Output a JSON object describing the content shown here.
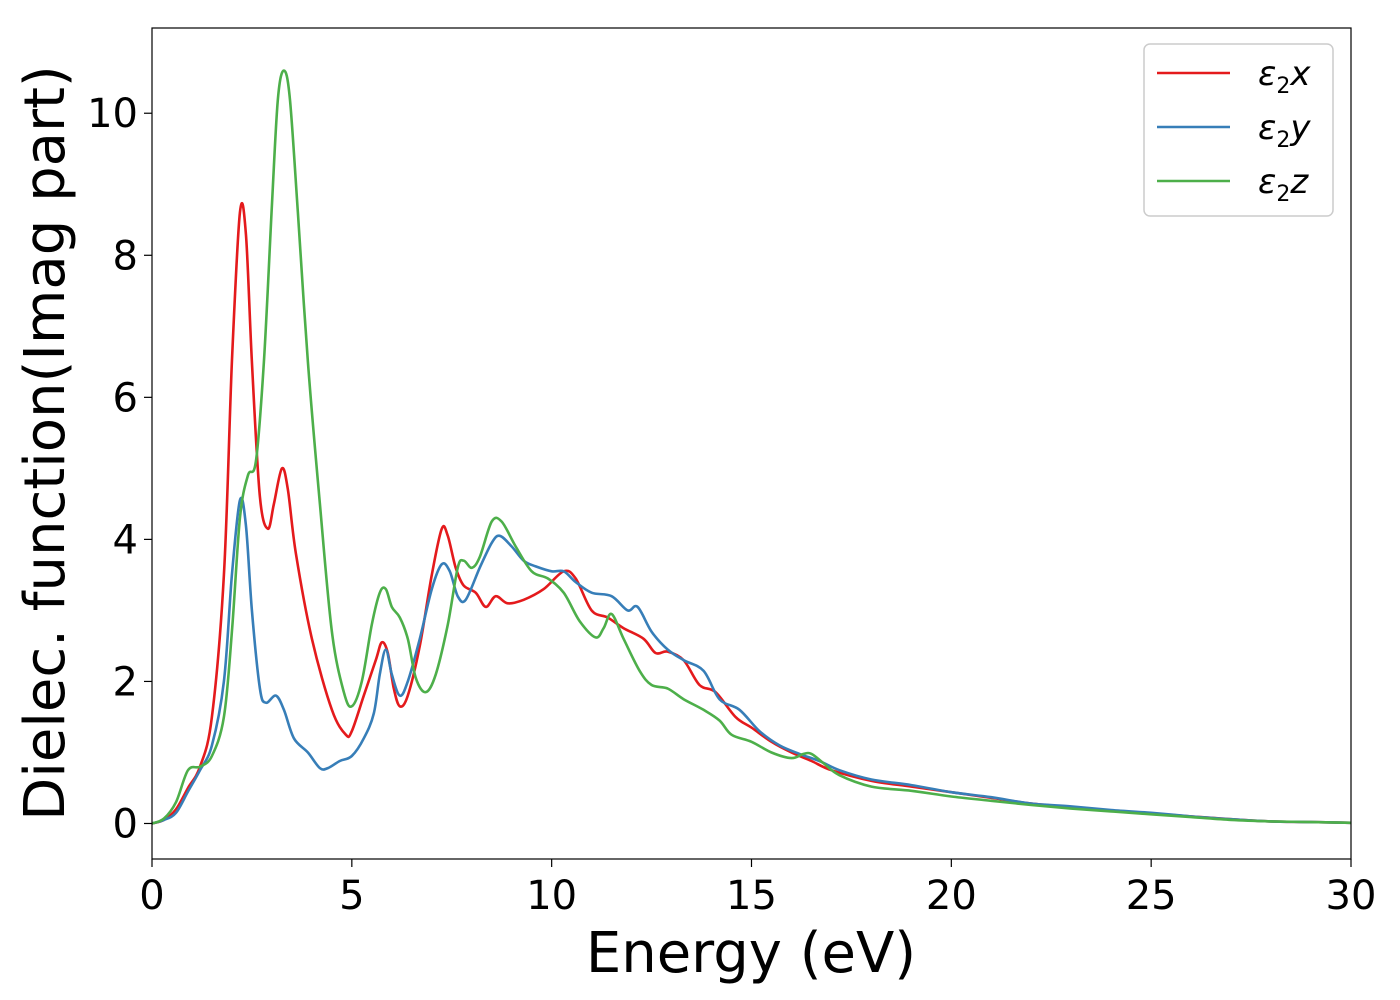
{
  "chart_data": {
    "type": "line",
    "xlabel": "Energy (eV)",
    "ylabel": "Dielec. function(Imag part)",
    "xlim": [
      0,
      30
    ],
    "ylim": [
      -0.5,
      11.2
    ],
    "xticks": [
      0,
      5,
      10,
      15,
      20,
      25,
      30
    ],
    "yticks": [
      0,
      2,
      4,
      6,
      8,
      10
    ],
    "grid": false,
    "legend_position": "top-right",
    "series": [
      {
        "name": "ε2x",
        "legend": {
          "base": "ε",
          "sub": "2",
          "var": "x"
        },
        "color": "#e41a1c",
        "points": [
          [
            0,
            0
          ],
          [
            0.3,
            0.05
          ],
          [
            0.6,
            0.2
          ],
          [
            0.9,
            0.5
          ],
          [
            1.2,
            0.8
          ],
          [
            1.5,
            1.5
          ],
          [
            1.8,
            3.5
          ],
          [
            2.0,
            6.5
          ],
          [
            2.2,
            8.6
          ],
          [
            2.35,
            8.3
          ],
          [
            2.5,
            6.5
          ],
          [
            2.7,
            4.6
          ],
          [
            2.9,
            4.15
          ],
          [
            3.05,
            4.5
          ],
          [
            3.25,
            5.0
          ],
          [
            3.4,
            4.7
          ],
          [
            3.6,
            3.8
          ],
          [
            4.0,
            2.6
          ],
          [
            4.5,
            1.6
          ],
          [
            4.85,
            1.25
          ],
          [
            5.0,
            1.3
          ],
          [
            5.3,
            1.8
          ],
          [
            5.6,
            2.3
          ],
          [
            5.75,
            2.55
          ],
          [
            5.9,
            2.4
          ],
          [
            6.05,
            1.9
          ],
          [
            6.2,
            1.65
          ],
          [
            6.4,
            1.8
          ],
          [
            6.7,
            2.5
          ],
          [
            7.0,
            3.5
          ],
          [
            7.25,
            4.15
          ],
          [
            7.4,
            4.05
          ],
          [
            7.6,
            3.6
          ],
          [
            7.8,
            3.35
          ],
          [
            8.1,
            3.25
          ],
          [
            8.35,
            3.05
          ],
          [
            8.6,
            3.2
          ],
          [
            8.9,
            3.1
          ],
          [
            9.3,
            3.15
          ],
          [
            9.8,
            3.3
          ],
          [
            10.3,
            3.55
          ],
          [
            10.6,
            3.45
          ],
          [
            11.0,
            3.0
          ],
          [
            11.4,
            2.9
          ],
          [
            11.8,
            2.75
          ],
          [
            12.3,
            2.6
          ],
          [
            12.6,
            2.4
          ],
          [
            12.9,
            2.42
          ],
          [
            13.3,
            2.3
          ],
          [
            13.7,
            1.95
          ],
          [
            14.1,
            1.85
          ],
          [
            14.6,
            1.5
          ],
          [
            15.0,
            1.35
          ],
          [
            15.5,
            1.15
          ],
          [
            16.0,
            1.0
          ],
          [
            16.5,
            0.88
          ],
          [
            17.0,
            0.75
          ],
          [
            18.0,
            0.6
          ],
          [
            19.0,
            0.52
          ],
          [
            20.0,
            0.44
          ],
          [
            21.0,
            0.36
          ],
          [
            22.0,
            0.28
          ],
          [
            23.0,
            0.23
          ],
          [
            24.0,
            0.18
          ],
          [
            25.0,
            0.14
          ],
          [
            26.0,
            0.1
          ],
          [
            27.0,
            0.06
          ],
          [
            28.0,
            0.03
          ],
          [
            29.0,
            0.02
          ],
          [
            30.0,
            0.01
          ]
        ]
      },
      {
        "name": "ε2y",
        "legend": {
          "base": "ε",
          "sub": "2",
          "var": "y"
        },
        "color": "#377eb8",
        "points": [
          [
            0,
            0
          ],
          [
            0.3,
            0.05
          ],
          [
            0.6,
            0.15
          ],
          [
            0.9,
            0.45
          ],
          [
            1.2,
            0.75
          ],
          [
            1.5,
            1.1
          ],
          [
            1.8,
            2.0
          ],
          [
            2.0,
            3.5
          ],
          [
            2.2,
            4.55
          ],
          [
            2.35,
            4.2
          ],
          [
            2.5,
            3.0
          ],
          [
            2.7,
            1.9
          ],
          [
            2.85,
            1.7
          ],
          [
            3.1,
            1.8
          ],
          [
            3.3,
            1.6
          ],
          [
            3.55,
            1.2
          ],
          [
            3.9,
            1.0
          ],
          [
            4.2,
            0.78
          ],
          [
            4.4,
            0.78
          ],
          [
            4.7,
            0.88
          ],
          [
            5.0,
            0.95
          ],
          [
            5.3,
            1.2
          ],
          [
            5.55,
            1.55
          ],
          [
            5.7,
            2.1
          ],
          [
            5.85,
            2.45
          ],
          [
            6.0,
            2.1
          ],
          [
            6.2,
            1.8
          ],
          [
            6.4,
            2.0
          ],
          [
            6.7,
            2.6
          ],
          [
            7.0,
            3.3
          ],
          [
            7.25,
            3.65
          ],
          [
            7.45,
            3.55
          ],
          [
            7.65,
            3.2
          ],
          [
            7.85,
            3.15
          ],
          [
            8.2,
            3.6
          ],
          [
            8.5,
            3.95
          ],
          [
            8.7,
            4.05
          ],
          [
            9.0,
            3.9
          ],
          [
            9.3,
            3.7
          ],
          [
            9.6,
            3.62
          ],
          [
            10.0,
            3.55
          ],
          [
            10.3,
            3.55
          ],
          [
            10.6,
            3.4
          ],
          [
            11.0,
            3.25
          ],
          [
            11.5,
            3.2
          ],
          [
            11.9,
            3.0
          ],
          [
            12.15,
            3.05
          ],
          [
            12.5,
            2.7
          ],
          [
            12.9,
            2.45
          ],
          [
            13.3,
            2.3
          ],
          [
            13.8,
            2.15
          ],
          [
            14.2,
            1.75
          ],
          [
            14.7,
            1.6
          ],
          [
            15.2,
            1.3
          ],
          [
            15.7,
            1.1
          ],
          [
            16.2,
            0.98
          ],
          [
            16.7,
            0.88
          ],
          [
            17.2,
            0.75
          ],
          [
            18.0,
            0.62
          ],
          [
            19.0,
            0.54
          ],
          [
            20.0,
            0.44
          ],
          [
            21.0,
            0.37
          ],
          [
            22.0,
            0.28
          ],
          [
            23.0,
            0.24
          ],
          [
            24.0,
            0.19
          ],
          [
            25.0,
            0.15
          ],
          [
            26.0,
            0.1
          ],
          [
            27.0,
            0.06
          ],
          [
            28.0,
            0.03
          ],
          [
            29.0,
            0.02
          ],
          [
            30.0,
            0.01
          ]
        ]
      },
      {
        "name": "ε2z",
        "legend": {
          "base": "ε",
          "sub": "2",
          "var": "z"
        },
        "color": "#4daf4a",
        "points": [
          [
            0,
            0
          ],
          [
            0.3,
            0.07
          ],
          [
            0.6,
            0.3
          ],
          [
            0.9,
            0.75
          ],
          [
            1.2,
            0.8
          ],
          [
            1.5,
            0.95
          ],
          [
            1.8,
            1.5
          ],
          [
            2.0,
            2.7
          ],
          [
            2.2,
            4.3
          ],
          [
            2.4,
            4.9
          ],
          [
            2.6,
            5.1
          ],
          [
            2.8,
            6.5
          ],
          [
            3.0,
            8.7
          ],
          [
            3.15,
            10.2
          ],
          [
            3.3,
            10.6
          ],
          [
            3.45,
            10.2
          ],
          [
            3.65,
            8.6
          ],
          [
            3.9,
            6.5
          ],
          [
            4.2,
            4.5
          ],
          [
            4.5,
            2.7
          ],
          [
            4.8,
            1.85
          ],
          [
            5.0,
            1.65
          ],
          [
            5.25,
            2.0
          ],
          [
            5.5,
            2.8
          ],
          [
            5.7,
            3.25
          ],
          [
            5.85,
            3.3
          ],
          [
            6.0,
            3.05
          ],
          [
            6.2,
            2.9
          ],
          [
            6.4,
            2.6
          ],
          [
            6.6,
            2.05
          ],
          [
            6.85,
            1.85
          ],
          [
            7.1,
            2.1
          ],
          [
            7.4,
            2.8
          ],
          [
            7.65,
            3.6
          ],
          [
            7.8,
            3.7
          ],
          [
            8.0,
            3.6
          ],
          [
            8.2,
            3.75
          ],
          [
            8.5,
            4.25
          ],
          [
            8.75,
            4.25
          ],
          [
            9.1,
            3.9
          ],
          [
            9.5,
            3.55
          ],
          [
            9.9,
            3.45
          ],
          [
            10.3,
            3.25
          ],
          [
            10.7,
            2.85
          ],
          [
            11.1,
            2.62
          ],
          [
            11.3,
            2.75
          ],
          [
            11.5,
            2.95
          ],
          [
            11.8,
            2.6
          ],
          [
            12.2,
            2.15
          ],
          [
            12.5,
            1.95
          ],
          [
            12.9,
            1.9
          ],
          [
            13.3,
            1.75
          ],
          [
            13.8,
            1.6
          ],
          [
            14.2,
            1.45
          ],
          [
            14.5,
            1.25
          ],
          [
            15.0,
            1.15
          ],
          [
            15.5,
            1.0
          ],
          [
            16.0,
            0.92
          ],
          [
            16.3,
            0.98
          ],
          [
            16.5,
            0.98
          ],
          [
            16.8,
            0.85
          ],
          [
            17.2,
            0.68
          ],
          [
            18.0,
            0.52
          ],
          [
            19.0,
            0.46
          ],
          [
            20.0,
            0.38
          ],
          [
            21.0,
            0.32
          ],
          [
            22.0,
            0.26
          ],
          [
            23.0,
            0.21
          ],
          [
            24.0,
            0.17
          ],
          [
            25.0,
            0.13
          ],
          [
            26.0,
            0.09
          ],
          [
            27.0,
            0.05
          ],
          [
            28.0,
            0.03
          ],
          [
            29.0,
            0.02
          ],
          [
            30.0,
            0.01
          ]
        ]
      }
    ]
  }
}
